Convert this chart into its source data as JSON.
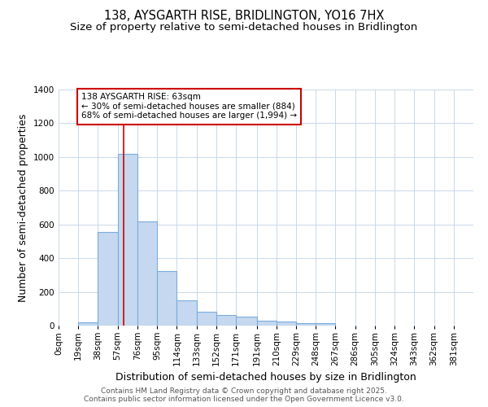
{
  "title": "138, AYSGARTH RISE, BRIDLINGTON, YO16 7HX",
  "subtitle": "Size of property relative to semi-detached houses in Bridlington",
  "xlabel": "Distribution of semi-detached houses by size in Bridlington",
  "ylabel": "Number of semi-detached properties",
  "bar_color": "#c5d8f0",
  "bar_edge_color": "#7aacdc",
  "background_color": "#ffffff",
  "grid_color": "#c8d8ea",
  "categories": [
    "0sqm",
    "19sqm",
    "38sqm",
    "57sqm",
    "76sqm",
    "95sqm",
    "114sqm",
    "133sqm",
    "152sqm",
    "171sqm",
    "191sqm",
    "210sqm",
    "229sqm",
    "248sqm",
    "267sqm",
    "286sqm",
    "305sqm",
    "324sqm",
    "343sqm",
    "362sqm",
    "381sqm"
  ],
  "values": [
    0,
    20,
    555,
    1020,
    620,
    325,
    148,
    80,
    65,
    55,
    30,
    25,
    13,
    15,
    0,
    0,
    0,
    0,
    0,
    0,
    0
  ],
  "bin_edges": [
    0,
    19,
    38,
    57,
    76,
    95,
    114,
    133,
    152,
    171,
    191,
    210,
    229,
    248,
    267,
    286,
    305,
    324,
    343,
    362,
    381,
    400
  ],
  "bin_width": 19,
  "ylim": [
    0,
    1400
  ],
  "yticks": [
    0,
    200,
    400,
    600,
    800,
    1000,
    1200,
    1400
  ],
  "vline_x": 63,
  "vline_color": "#cc0000",
  "annotation_text": "138 AYSGARTH RISE: 63sqm\n← 30% of semi-detached houses are smaller (884)\n68% of semi-detached houses are larger (1,994) →",
  "annotation_box_color": "#ffffff",
  "annotation_box_edge": "#cc0000",
  "footer_text": "Contains HM Land Registry data © Crown copyright and database right 2025.\nContains public sector information licensed under the Open Government Licence v3.0.",
  "title_fontsize": 10.5,
  "subtitle_fontsize": 9.5,
  "axis_label_fontsize": 9,
  "tick_fontsize": 7.5,
  "footer_fontsize": 6.5
}
